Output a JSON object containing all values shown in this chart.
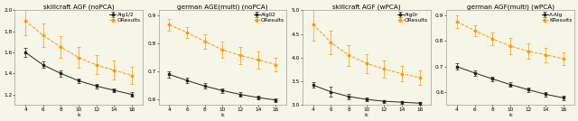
{
  "panels": [
    {
      "title": "skillcraft AGF (noPCA)",
      "xlabel": "k",
      "x": [
        4,
        6,
        8,
        10,
        12,
        14,
        16
      ],
      "line1_label": "Alg1/2",
      "line1_y": [
        1.6,
        1.48,
        1.4,
        1.33,
        1.28,
        1.24,
        1.2
      ],
      "line1_yerr": [
        0.04,
        0.03,
        0.03,
        0.02,
        0.02,
        0.02,
        0.02
      ],
      "line1_color": "#222222",
      "line2_label": "OResults",
      "line2_y": [
        1.9,
        1.76,
        1.65,
        1.55,
        1.48,
        1.43,
        1.38
      ],
      "line2_yerr": [
        0.14,
        0.11,
        0.1,
        0.1,
        0.09,
        0.09,
        0.08
      ],
      "line2_color": "#FF9900",
      "ylim": [
        1.1,
        2.0
      ],
      "yticks": [
        1.2,
        1.4,
        1.6,
        1.8,
        2.0
      ],
      "ytick_labels": [
        "1.2",
        "1.4",
        "1.6",
        "1.8",
        "2.0"
      ]
    },
    {
      "title": "german AGE(multi) (noPCA)",
      "xlabel": "k",
      "x": [
        4,
        6,
        8,
        10,
        12,
        14,
        16
      ],
      "line1_label": "Alg02",
      "line1_y": [
        0.69,
        0.668,
        0.648,
        0.632,
        0.618,
        0.607,
        0.598
      ],
      "line1_yerr": [
        0.012,
        0.01,
        0.01,
        0.009,
        0.008,
        0.008,
        0.007
      ],
      "line1_color": "#222222",
      "line2_label": "OResults",
      "line2_y": [
        0.868,
        0.84,
        0.808,
        0.778,
        0.758,
        0.742,
        0.725
      ],
      "line2_yerr": [
        0.022,
        0.02,
        0.025,
        0.03,
        0.03,
        0.03,
        0.025
      ],
      "line2_color": "#FF9900",
      "ylim": [
        0.58,
        0.92
      ],
      "yticks": [
        0.6,
        0.7,
        0.8,
        0.9
      ],
      "ytick_labels": [
        "0.6",
        "0.7",
        "0.8",
        "0.9"
      ]
    },
    {
      "title": "skillcraft AGF (wPCA)",
      "xlabel": "k",
      "x": [
        4,
        6,
        8,
        10,
        12,
        14,
        16
      ],
      "line1_label": "Alg0r",
      "line1_y": [
        3.42,
        3.28,
        3.18,
        3.12,
        3.08,
        3.06,
        3.04
      ],
      "line1_yerr": [
        0.06,
        0.1,
        0.05,
        0.04,
        0.03,
        0.03,
        0.03
      ],
      "line1_color": "#222222",
      "line2_label": "OResults",
      "line2_y": [
        4.7,
        4.32,
        4.05,
        3.88,
        3.76,
        3.66,
        3.58
      ],
      "line2_yerr": [
        0.35,
        0.25,
        0.22,
        0.2,
        0.18,
        0.16,
        0.15
      ],
      "line2_color": "#FF9900",
      "ylim": [
        3.0,
        5.0
      ],
      "yticks": [
        3.0,
        3.5,
        4.0,
        4.5,
        5.0
      ],
      "ytick_labels": [
        "3.0",
        "3.5",
        "4.0",
        "4.5",
        "5.0"
      ]
    },
    {
      "title": "german AGF(multi) (wPCA)",
      "xlabel": "k",
      "x": [
        4,
        6,
        8,
        10,
        12,
        14,
        16
      ],
      "line1_label": "A-Alg",
      "line1_y": [
        0.7,
        0.675,
        0.652,
        0.63,
        0.61,
        0.592,
        0.578
      ],
      "line1_yerr": [
        0.012,
        0.01,
        0.01,
        0.009,
        0.009,
        0.008,
        0.008
      ],
      "line1_color": "#222222",
      "line2_label": "KResults",
      "line2_y": [
        0.875,
        0.84,
        0.808,
        0.78,
        0.76,
        0.746,
        0.73
      ],
      "line2_yerr": [
        0.025,
        0.022,
        0.025,
        0.03,
        0.03,
        0.028,
        0.025
      ],
      "line2_color": "#FF9900",
      "ylim": [
        0.55,
        0.92
      ],
      "yticks": [
        0.6,
        0.7,
        0.8,
        0.9
      ],
      "ytick_labels": [
        "0.6",
        "0.7",
        "0.8",
        "0.9"
      ]
    }
  ],
  "bg_color": "#f5f5e8",
  "legend_fontsize": 4.2,
  "title_fontsize": 5.2,
  "tick_fontsize": 4.2,
  "label_fontsize": 4.5
}
